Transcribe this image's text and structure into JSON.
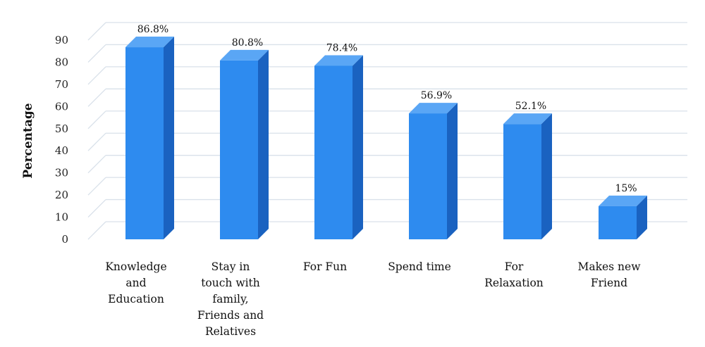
{
  "chart_data": {
    "type": "bar",
    "title": "",
    "xlabel": "",
    "ylabel": "Percentage",
    "ylim": [
      0,
      90
    ],
    "yticks": [
      0,
      10,
      20,
      30,
      40,
      50,
      60,
      70,
      80,
      90
    ],
    "grid": true,
    "style": "3d",
    "categories": [
      "Knowledge\nand\nEducation",
      "Stay in\ntouch with\nfamily,\nFriends and\nRelatives",
      "For Fun",
      "Spend time",
      "For\nRelaxation",
      "Makes new\nFriend"
    ],
    "values": [
      86.8,
      80.8,
      78.4,
      56.9,
      52.1,
      15
    ],
    "data_labels": [
      "86.8%",
      "80.8%",
      "78.4%",
      "56.9%",
      "52.1%",
      "15%"
    ],
    "colors": {
      "bar_front": "#2e8bef",
      "bar_side": "#1a62c0",
      "bar_top": "#5aa6f5",
      "grid": "#d9e1ea"
    }
  }
}
